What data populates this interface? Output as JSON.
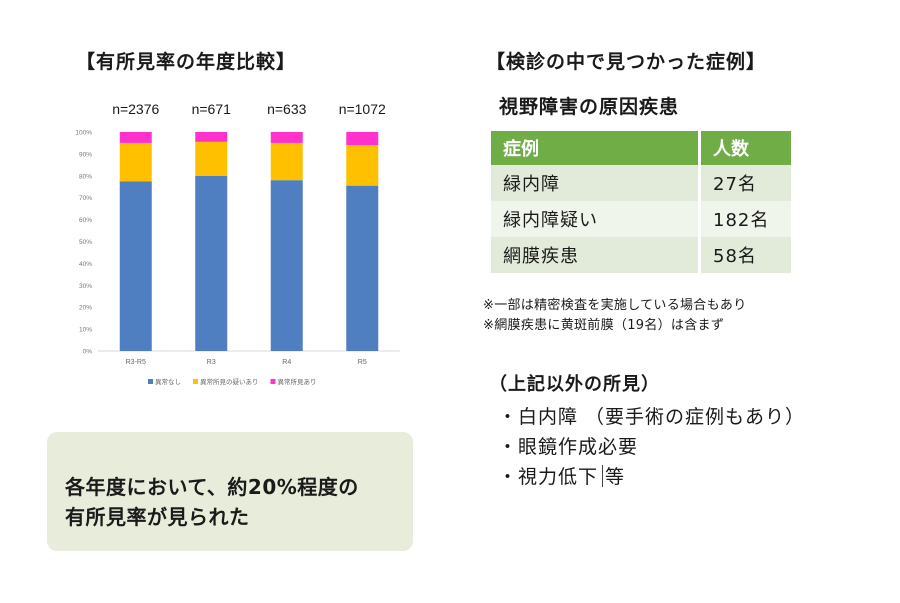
{
  "left_section": {
    "title": "【有所見率の年度比較】",
    "note": [
      "各年度において、約20%程度の",
      "有所見率が見られた"
    ]
  },
  "chart_data": {
    "type": "bar",
    "stacked": true,
    "percent": true,
    "categories": [
      "R3-R5",
      "R3",
      "R4",
      "R5"
    ],
    "sample_sizes": [
      "n=2376",
      "n=671",
      "n=633",
      "n=1072"
    ],
    "series": [
      {
        "name": "異常なし",
        "color": "#4f7fc0",
        "values": [
          77.5,
          80,
          78,
          75.5
        ]
      },
      {
        "name": "異常所見の疑いあり",
        "color": "#ffc000",
        "values": [
          17.5,
          15.5,
          17,
          18.5
        ]
      },
      {
        "name": "異常所見あり",
        "color": "#ff33cc",
        "values": [
          5,
          4.5,
          5,
          6
        ]
      }
    ],
    "yticks": [
      "0%",
      "10%",
      "20%",
      "30%",
      "40%",
      "50%",
      "60%",
      "70%",
      "80%",
      "90%",
      "100%"
    ],
    "ylim": [
      0,
      100
    ],
    "legend_position": "bottom"
  },
  "right_section": {
    "title": "【検診の中で見つかった症例】",
    "subtitle": "視野障害の原因疾患",
    "table": {
      "headers": [
        "症例",
        "人数"
      ],
      "rows": [
        [
          "緑内障",
          "27名"
        ],
        [
          "緑内障疑い",
          "182名"
        ],
        [
          "網膜疾患",
          "58名"
        ]
      ]
    },
    "footnotes": [
      "※一部は精密検査を実施している場合もあり",
      "※網膜疾患に黄斑前膜（19名）は含まず"
    ],
    "other_title": "（上記以外の所見）",
    "other_items": [
      "・白内障 （要手術の症例もあり）",
      "・眼鏡作成必要",
      "・視力低下"
    ],
    "other_suffix": "等"
  }
}
